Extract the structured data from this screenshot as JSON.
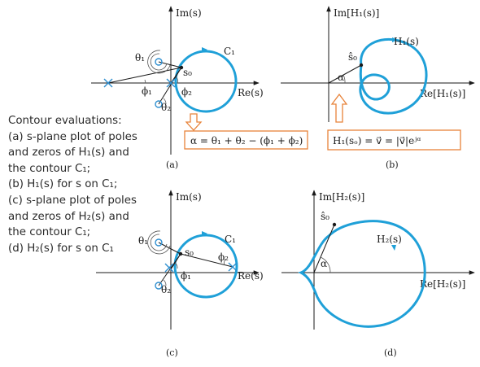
{
  "caption": {
    "lines": [
      "Contour evaluations:",
      "(a) s-plane plot of poles",
      "and zeros of H₁(s) and",
      "the contour C₁;",
      "(b) H₁(s) for s on C₁;",
      "(c) s-plane plot of poles",
      "and zeros of H₂(s) and",
      "the contour C₁;",
      "(d) H₂(s) for s on C₁"
    ]
  },
  "panel_a": {
    "im_axis": "Im(s)",
    "re_axis": "Re(s)",
    "contour": "C₁",
    "theta1": "θ₁",
    "theta2": "θ₂",
    "phi1": "ϕ₁",
    "phi2": "ϕ₂",
    "point": "s₀",
    "equation": "α = θ₁ + θ₂ − (ϕ₁ + ϕ₂)",
    "tag": "(a)"
  },
  "panel_b": {
    "im_axis": "Im[H₁(s)]",
    "re_axis": "Re[H₁(s)]",
    "curve": "H₁(s)",
    "point": "ŝ₀",
    "angle": "α",
    "equation": "H₁(sₒ) = v⃗ = |v⃗|eʲᵅ",
    "tag": "(b)"
  },
  "panel_c": {
    "im_axis": "Im(s)",
    "re_axis": "Re(s)",
    "contour": "C₁",
    "theta1": "θ₁",
    "theta2": "θ₂",
    "phi1": "ϕ₁",
    "phi2": "ϕ₂",
    "point": "s₀",
    "tag": "(c)"
  },
  "panel_d": {
    "im_axis": "Im[H₂(s)]",
    "re_axis": "Re[H₂(s)]",
    "curve": "H₂(s)",
    "point": "ŝ₀",
    "angle": "α",
    "tag": "(d)"
  },
  "colors": {
    "curve": "#1fa0d8",
    "marker": "#2f8fd0",
    "box": "#e8833a",
    "text": "#1a1a1a"
  }
}
